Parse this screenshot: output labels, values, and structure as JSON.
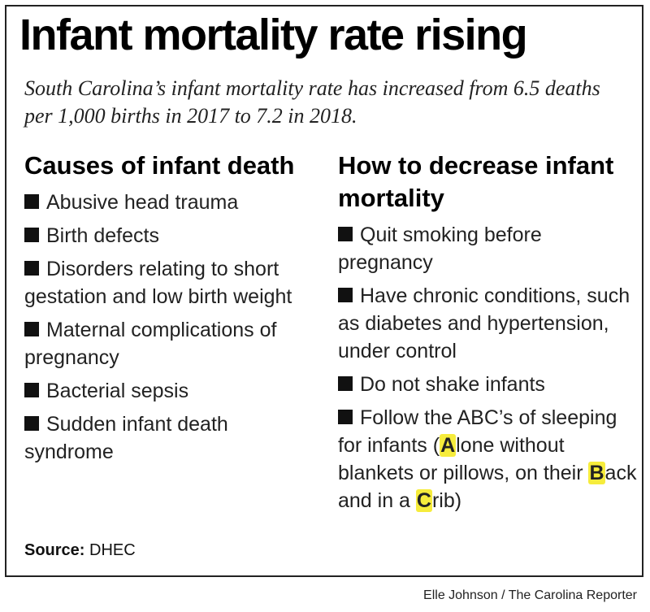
{
  "title": "Infant mortality rate rising",
  "subtitle": "South Carolina’s infant mortality rate has increased from 6.5 deaths per 1,000 births in 2017 to 7.2 in 2018.",
  "causes": {
    "heading": "Causes of infant death",
    "items": [
      "Abusive head trauma",
      "Birth defects",
      "Disorders relating to short gestation and low birth weight",
      "Maternal complications of pregnancy",
      "Bacterial sepsis",
      "Sudden infant death syndrome"
    ]
  },
  "prevention": {
    "heading": "How to decrease infant mortality",
    "items": [
      "Quit smoking before pregnancy",
      "Have chronic conditions, such as diabetes and hypertension, under control",
      "Do not shake infants"
    ],
    "abc": {
      "prefix": "Follow the ABC’s of sleeping for infants (",
      "a_letter": "A",
      "a_rest": "lone without blankets or pillows, on their ",
      "b_letter": "B",
      "b_rest": "ack and in a ",
      "c_letter": "C",
      "c_rest": "rib)"
    }
  },
  "source": {
    "label": "Source:",
    "value": "DHEC"
  },
  "credit": "Elle Johnson / The Carolina Reporter",
  "colors": {
    "highlight": "#f6ec3c",
    "text": "#111111",
    "border": "#222222"
  }
}
